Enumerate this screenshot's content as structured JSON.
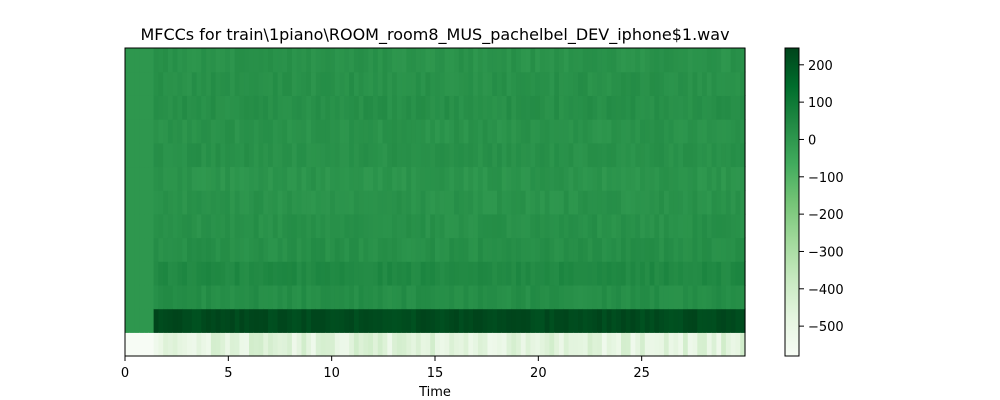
{
  "chart_data": {
    "type": "heatmap",
    "title": "MFCCs for train\\1piano\\ROOM_room8_MUS_pachelbel_DEV_iphone$1.wav",
    "xlabel": "Time",
    "ylabel": "",
    "xlim": [
      0,
      30
    ],
    "x_ticks": [
      0,
      5,
      10,
      15,
      20,
      25
    ],
    "x_tick_labels": [
      "0",
      "5",
      "10",
      "15",
      "20",
      "25"
    ],
    "y_ticks_shown": false,
    "n_coefficients": 13,
    "silence_end_time": 1.5,
    "colormap": "Greens",
    "colormap_stops": [
      "#f7fcf5",
      "#e5f5e0",
      "#c7e9c0",
      "#a1d99b",
      "#74c476",
      "#41ab5d",
      "#238b45",
      "#006d2c",
      "#00441b"
    ],
    "vmin": -580,
    "vmax": 245,
    "coefficient_means": [
      -470,
      230,
      30,
      45,
      25,
      20,
      15,
      10,
      20,
      15,
      25,
      20,
      15
    ],
    "silence_values": [
      -580,
      0,
      0,
      0,
      0,
      0,
      0,
      0,
      0,
      0,
      0,
      0,
      0
    ],
    "colorbar_ticks": [
      200,
      100,
      0,
      -100,
      -200,
      -300,
      -400,
      -500
    ],
    "colorbar_tick_labels": [
      "200",
      "100",
      "0",
      "−100",
      "−200",
      "−300",
      "−400",
      "−500"
    ]
  }
}
